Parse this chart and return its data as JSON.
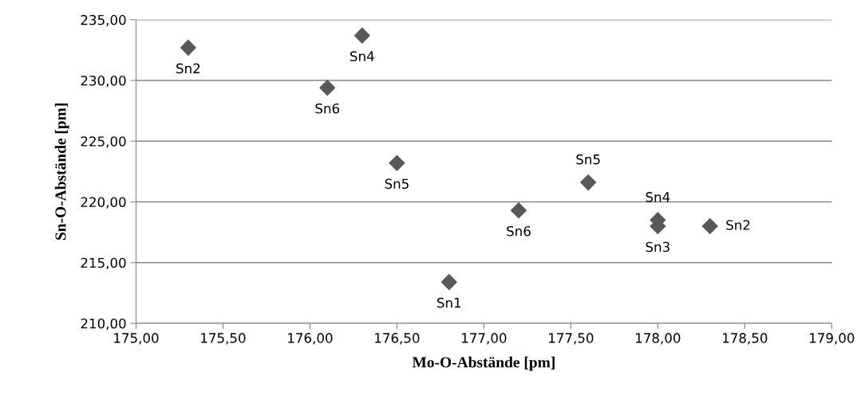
{
  "chart_data": {
    "type": "scatter",
    "xlabel": "Mo-O-Abstände [pm]",
    "ylabel": "Sn-O-Abstände [pm]",
    "x": [
      175.3,
      176.3,
      176.1,
      176.5,
      176.8,
      177.2,
      177.6,
      178.0,
      178.0,
      178.3
    ],
    "values": [
      232.7,
      233.7,
      229.4,
      223.2,
      213.4,
      219.3,
      221.6,
      218.5,
      218.0,
      218.0
    ],
    "value_labels": [
      "Sn2",
      "Sn4",
      "Sn6",
      "Sn5",
      "Sn1",
      "Sn6",
      "Sn5",
      "Sn4",
      "Sn3",
      "Sn2"
    ],
    "color": "#595959",
    "marker": "diamond",
    "grid": "y",
    "legend": false,
    "xlim": [
      175,
      179
    ],
    "ylim": [
      210,
      235
    ],
    "xticks": [
      {
        "value": 175,
        "label": "175,00"
      },
      {
        "value": 175.5,
        "label": "175,50"
      },
      {
        "value": 176,
        "label": "176,00"
      },
      {
        "value": 176.5,
        "label": "176,50"
      },
      {
        "value": 177,
        "label": "177,00"
      },
      {
        "value": 177.5,
        "label": "177,50"
      },
      {
        "value": 178,
        "label": "178,00"
      },
      {
        "value": 178.5,
        "label": "178,50"
      },
      {
        "value": 179,
        "label": "179,00"
      }
    ],
    "yticks": [
      {
        "value": 210,
        "label": "210,00"
      },
      {
        "value": 215,
        "label": "215,00"
      },
      {
        "value": 220,
        "label": "220,00"
      },
      {
        "value": 225,
        "label": "225,00"
      },
      {
        "value": 230,
        "label": "230,00"
      },
      {
        "value": 235,
        "label": "235,00"
      }
    ]
  }
}
